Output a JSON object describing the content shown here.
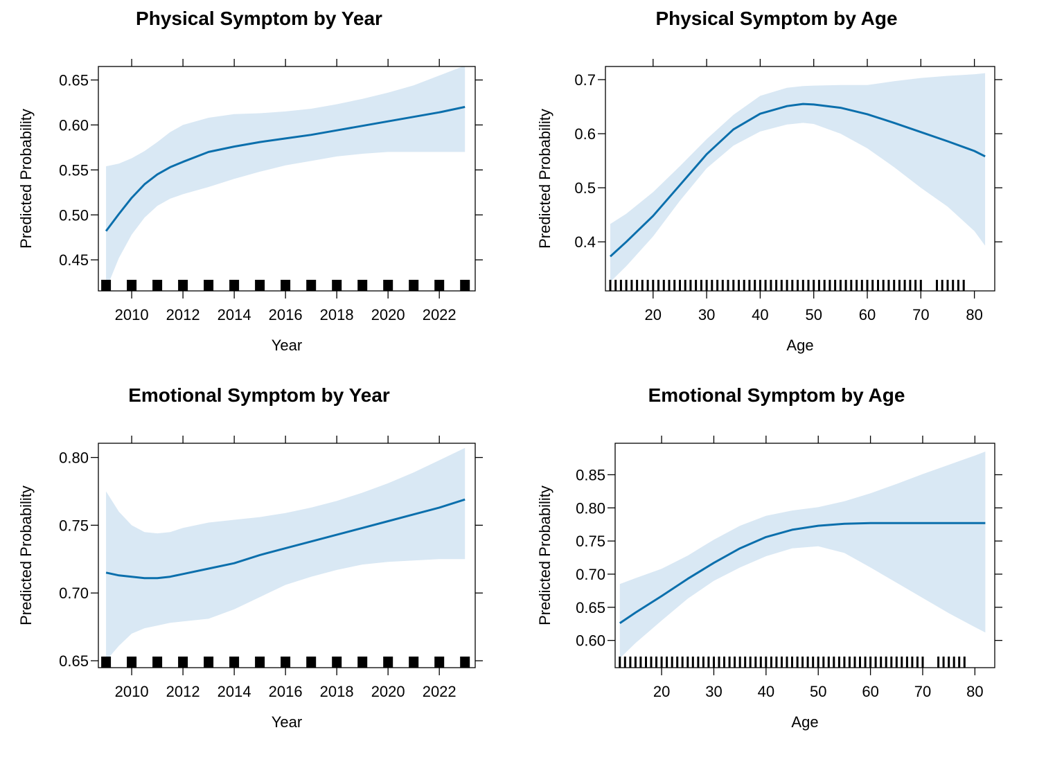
{
  "chart_data": [
    {
      "type": "line",
      "title": "Physical Symptom by Year",
      "xlabel": "Year",
      "ylabel": "Predicted Probability",
      "xlim": [
        2008.7,
        2023.4
      ],
      "ylim": [
        0.4155,
        0.665
      ],
      "xticks": [
        2010,
        2012,
        2014,
        2016,
        2018,
        2020,
        2022
      ],
      "yticks": [
        0.45,
        0.5,
        0.55,
        0.6,
        0.65
      ],
      "ytick_labels": [
        "0.45",
        "0.50",
        "0.55",
        "0.60",
        "0.65"
      ],
      "line_color": "#0b6fac",
      "band_color": "#d9e8f4",
      "series": [
        {
          "x": [
            2009,
            2009.5,
            2010,
            2010.5,
            2011,
            2011.5,
            2012,
            2013,
            2014,
            2015,
            2016,
            2017,
            2018,
            2019,
            2020,
            2021,
            2022,
            2023
          ],
          "values": [
            0.482,
            0.501,
            0.519,
            0.534,
            0.545,
            0.553,
            0.559,
            0.57,
            0.576,
            0.581,
            0.585,
            0.589,
            0.594,
            0.599,
            0.604,
            0.609,
            0.614,
            0.62
          ],
          "lower": [
            0.417,
            0.452,
            0.478,
            0.497,
            0.51,
            0.518,
            0.523,
            0.531,
            0.54,
            0.548,
            0.555,
            0.56,
            0.565,
            0.568,
            0.57,
            0.57,
            0.57,
            0.57
          ],
          "upper": [
            0.554,
            0.557,
            0.563,
            0.571,
            0.581,
            0.592,
            0.6,
            0.608,
            0.612,
            0.613,
            0.615,
            0.618,
            0.623,
            0.629,
            0.636,
            0.644,
            0.655,
            0.666
          ]
        }
      ],
      "rug": [
        2009,
        2010,
        2011,
        2012,
        2013,
        2014,
        2015,
        2016,
        2017,
        2018,
        2019,
        2020,
        2021,
        2022,
        2023
      ]
    },
    {
      "type": "line",
      "title": "Physical Symptom by Age",
      "xlabel": "Age",
      "ylabel": "Predicted Probability",
      "xlim": [
        11.1,
        83.8
      ],
      "ylim": [
        0.3093,
        0.7243
      ],
      "xticks": [
        20,
        30,
        40,
        50,
        60,
        70,
        80
      ],
      "yticks": [
        0.4,
        0.5,
        0.6,
        0.7
      ],
      "ytick_labels": [
        "0.4",
        "0.5",
        "0.6",
        "0.7"
      ],
      "line_color": "#0b6fac",
      "band_color": "#d9e8f4",
      "series": [
        {
          "x": [
            12,
            15,
            20,
            25,
            30,
            35,
            40,
            45,
            48,
            50,
            55,
            60,
            65,
            70,
            75,
            80,
            82
          ],
          "values": [
            0.373,
            0.4,
            0.448,
            0.505,
            0.562,
            0.608,
            0.637,
            0.651,
            0.655,
            0.654,
            0.648,
            0.636,
            0.62,
            0.603,
            0.586,
            0.568,
            0.558
          ],
          "lower": [
            0.326,
            0.355,
            0.41,
            0.476,
            0.536,
            0.578,
            0.604,
            0.617,
            0.62,
            0.618,
            0.6,
            0.573,
            0.538,
            0.5,
            0.465,
            0.42,
            0.393
          ],
          "upper": [
            0.433,
            0.452,
            0.492,
            0.54,
            0.59,
            0.635,
            0.67,
            0.685,
            0.688,
            0.689,
            0.69,
            0.69,
            0.697,
            0.703,
            0.707,
            0.71,
            0.712
          ]
        }
      ],
      "rug": [
        12,
        13,
        14,
        15,
        16,
        17,
        18,
        19,
        20,
        21,
        22,
        23,
        24,
        25,
        26,
        27,
        28,
        29,
        30,
        31,
        32,
        33,
        34,
        35,
        36,
        37,
        38,
        39,
        40,
        41,
        42,
        43,
        44,
        45,
        46,
        47,
        48,
        49,
        50,
        51,
        52,
        53,
        54,
        55,
        56,
        57,
        58,
        59,
        60,
        61,
        62,
        63,
        64,
        65,
        66,
        67,
        68,
        69,
        70,
        73,
        74,
        75,
        76,
        77,
        78
      ]
    },
    {
      "type": "line",
      "title": "Emotional Symptom by Year",
      "xlabel": "Year",
      "ylabel": "Predicted Probability",
      "xlim": [
        2008.7,
        2023.4
      ],
      "ylim": [
        0.6449,
        0.8105
      ],
      "xticks": [
        2010,
        2012,
        2014,
        2016,
        2018,
        2020,
        2022
      ],
      "yticks": [
        0.65,
        0.7,
        0.75,
        0.8
      ],
      "ytick_labels": [
        "0.65",
        "0.70",
        "0.75",
        "0.80"
      ],
      "line_color": "#0b6fac",
      "band_color": "#d9e8f4",
      "series": [
        {
          "x": [
            2009,
            2009.5,
            2010,
            2010.5,
            2011,
            2011.5,
            2012,
            2013,
            2014,
            2015,
            2016,
            2017,
            2018,
            2019,
            2020,
            2021,
            2022,
            2023
          ],
          "values": [
            0.715,
            0.713,
            0.712,
            0.711,
            0.711,
            0.712,
            0.714,
            0.718,
            0.722,
            0.728,
            0.733,
            0.738,
            0.743,
            0.748,
            0.753,
            0.758,
            0.763,
            0.769
          ],
          "lower": [
            0.65,
            0.661,
            0.67,
            0.674,
            0.676,
            0.678,
            0.679,
            0.681,
            0.688,
            0.697,
            0.706,
            0.712,
            0.717,
            0.721,
            0.723,
            0.724,
            0.725,
            0.725
          ],
          "upper": [
            0.775,
            0.76,
            0.75,
            0.745,
            0.744,
            0.745,
            0.748,
            0.752,
            0.754,
            0.756,
            0.759,
            0.763,
            0.768,
            0.774,
            0.781,
            0.789,
            0.798,
            0.807
          ]
        }
      ],
      "rug": [
        2009,
        2010,
        2011,
        2012,
        2013,
        2014,
        2015,
        2016,
        2017,
        2018,
        2019,
        2020,
        2021,
        2022,
        2023
      ]
    },
    {
      "type": "line",
      "title": "Emotional Symptom by Age",
      "xlabel": "Age",
      "ylabel": "Predicted Probability",
      "xlim": [
        11.1,
        83.8
      ],
      "ylim": [
        0.5589,
        0.8975
      ],
      "xticks": [
        20,
        30,
        40,
        50,
        60,
        70,
        80
      ],
      "yticks": [
        0.6,
        0.65,
        0.7,
        0.75,
        0.8,
        0.85
      ],
      "ytick_labels": [
        "0.60",
        "0.65",
        "0.70",
        "0.75",
        "0.80",
        "0.85"
      ],
      "line_color": "#0b6fac",
      "band_color": "#d9e8f4",
      "series": [
        {
          "x": [
            12,
            15,
            20,
            25,
            30,
            35,
            40,
            45,
            50,
            55,
            60,
            65,
            70,
            75,
            80,
            82
          ],
          "values": [
            0.626,
            0.642,
            0.667,
            0.693,
            0.717,
            0.739,
            0.756,
            0.767,
            0.773,
            0.776,
            0.777,
            0.777,
            0.777,
            0.777,
            0.777,
            0.777
          ],
          "lower": [
            0.573,
            0.596,
            0.63,
            0.663,
            0.69,
            0.71,
            0.727,
            0.739,
            0.742,
            0.732,
            0.71,
            0.687,
            0.664,
            0.641,
            0.62,
            0.612
          ],
          "upper": [
            0.685,
            0.694,
            0.708,
            0.728,
            0.752,
            0.773,
            0.788,
            0.796,
            0.801,
            0.81,
            0.822,
            0.836,
            0.851,
            0.865,
            0.879,
            0.885
          ]
        }
      ],
      "rug": [
        12,
        13,
        14,
        15,
        16,
        17,
        18,
        19,
        20,
        21,
        22,
        23,
        24,
        25,
        26,
        27,
        28,
        29,
        30,
        31,
        32,
        33,
        34,
        35,
        36,
        37,
        38,
        39,
        40,
        41,
        42,
        43,
        44,
        45,
        46,
        47,
        48,
        49,
        50,
        51,
        52,
        53,
        54,
        55,
        56,
        57,
        58,
        59,
        60,
        61,
        62,
        63,
        64,
        65,
        66,
        67,
        68,
        69,
        70,
        73,
        74,
        75,
        76,
        77,
        78
      ]
    }
  ]
}
